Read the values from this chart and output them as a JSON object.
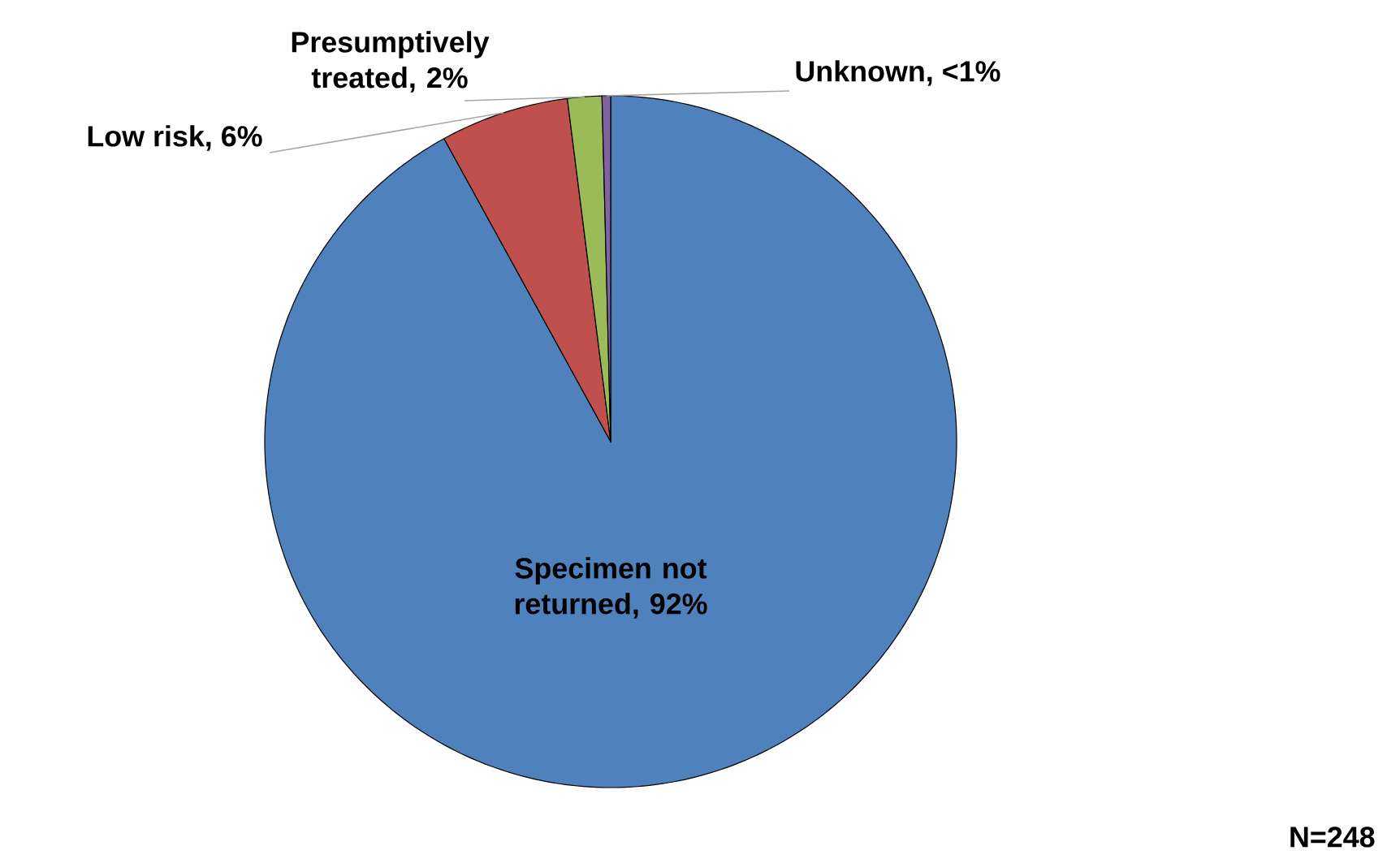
{
  "chart_data": {
    "type": "pie",
    "categories": [
      "Specimen not returned, 92%",
      "Low risk, 6%",
      "Presumptively treated, 2%",
      "Unknown, <1%"
    ],
    "values": [
      92,
      6,
      1.6,
      0.4
    ],
    "colors": [
      "#4f81bd",
      "#c0504d",
      "#9bbb59",
      "#8064a2"
    ],
    "annotations": [
      "N=248"
    ]
  }
}
